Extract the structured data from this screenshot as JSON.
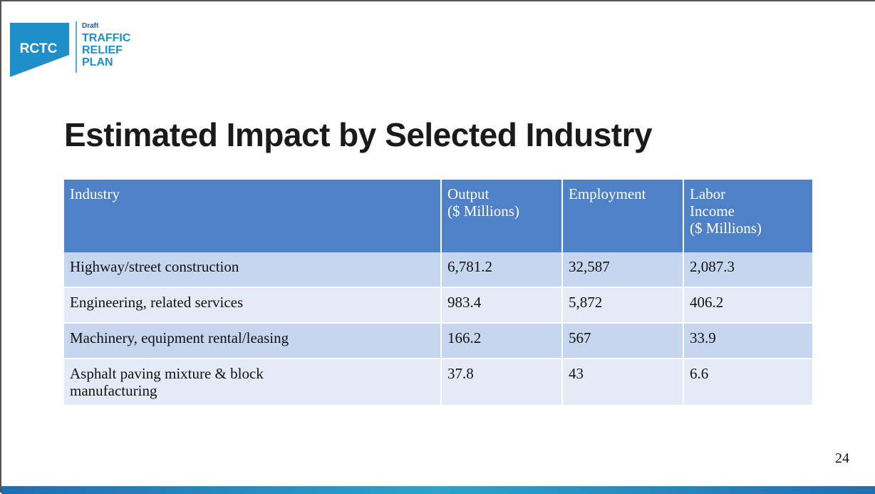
{
  "logo": {
    "abbr": "RCTC",
    "draft": "Draft",
    "lines": [
      "TRAFFIC",
      "RELIEF",
      "PLAN"
    ]
  },
  "title": "Estimated Impact by Selected Industry",
  "table": {
    "header": [
      [
        "Industry"
      ],
      [
        "Output",
        "($ Millions)"
      ],
      [
        "Employment"
      ],
      [
        "Labor",
        "Income",
        "($ Millions)"
      ]
    ],
    "rows": [
      [
        [
          "Highway/street construction"
        ],
        [
          "6,781.2"
        ],
        [
          "32,587"
        ],
        [
          "2,087.3"
        ]
      ],
      [
        [
          "Engineering, related services"
        ],
        [
          "983.4"
        ],
        [
          "5,872"
        ],
        [
          "406.2"
        ]
      ],
      [
        [
          "Machinery, equipment rental/leasing"
        ],
        [
          "166.2"
        ],
        [
          "567"
        ],
        [
          "33.9"
        ]
      ],
      [
        [
          "Asphalt paving mixture & block",
          "manufacturing"
        ],
        [
          "37.8"
        ],
        [
          "43"
        ],
        [
          "6.6"
        ]
      ]
    ]
  },
  "page_number": "24"
}
